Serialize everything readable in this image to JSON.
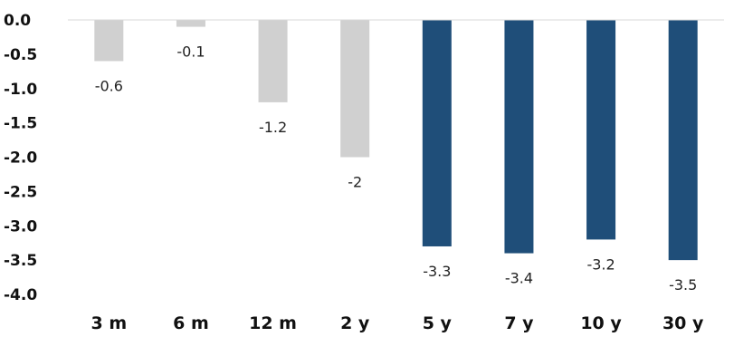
{
  "chart_data": {
    "type": "bar",
    "categories": [
      "3 m",
      "6 m",
      "12 m",
      "2 y",
      "5 y",
      "7 y",
      "10 y",
      "30 y"
    ],
    "values": [
      -0.6,
      -0.1,
      -1.2,
      -2,
      -3.3,
      -3.4,
      -3.2,
      -3.5
    ],
    "data_labels": [
      "-0.6",
      "-0.1",
      "-1.2",
      "-2",
      "-3.3",
      "-3.4",
      "-3.2",
      "-3.5"
    ],
    "bar_colors": [
      "#d0d0d0",
      "#d0d0d0",
      "#d0d0d0",
      "#d0d0d0",
      "#1f4e79",
      "#1f4e79",
      "#1f4e79",
      "#1f4e79"
    ],
    "y_ticks": [
      "0.0",
      "-0.5",
      "-1.0",
      "-1.5",
      "-2.0",
      "-2.5",
      "-3.0",
      "-3.5",
      "-4.0"
    ],
    "ylim": [
      -4.0,
      0.0
    ],
    "title": "",
    "xlabel": "",
    "ylabel": "",
    "grid": false,
    "axis_line_color": "#d9d9d9"
  }
}
